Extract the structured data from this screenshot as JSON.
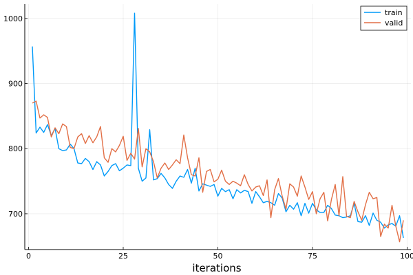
{
  "chart_data": {
    "type": "line",
    "title": "",
    "xlabel": "iterations",
    "ylabel": "",
    "xlim": [
      -1,
      101
    ],
    "ylim": [
      645,
      1022
    ],
    "xticks": [
      0,
      25,
      50,
      75,
      100
    ],
    "yticks": [
      700,
      800,
      900,
      1000
    ],
    "grid": true,
    "legend_position": "top-right",
    "series": [
      {
        "name": "train",
        "color": "#009af9",
        "x": [
          1,
          2,
          3,
          4,
          5,
          6,
          7,
          8,
          9,
          10,
          11,
          12,
          13,
          14,
          15,
          16,
          17,
          18,
          19,
          20,
          21,
          22,
          23,
          24,
          25,
          26,
          27,
          28,
          29,
          30,
          31,
          32,
          33,
          34,
          35,
          36,
          37,
          38,
          39,
          40,
          41,
          42,
          43,
          44,
          45,
          46,
          47,
          48,
          49,
          50,
          51,
          52,
          53,
          54,
          55,
          56,
          57,
          58,
          59,
          60,
          61,
          62,
          63,
          64,
          65,
          66,
          67,
          68,
          69,
          70,
          71,
          72,
          73,
          74,
          75,
          76,
          77,
          78,
          79,
          80,
          81,
          82,
          83,
          84,
          85,
          86,
          87,
          88,
          89,
          90,
          91,
          92,
          93,
          94,
          95,
          96,
          97,
          98,
          99
        ],
        "y": [
          957,
          824,
          833,
          825,
          837,
          820,
          831,
          800,
          797,
          798,
          807,
          800,
          778,
          777,
          785,
          780,
          768,
          780,
          775,
          758,
          765,
          774,
          777,
          766,
          770,
          775,
          774,
          1008,
          770,
          750,
          755,
          829,
          752,
          754,
          762,
          755,
          745,
          739,
          750,
          758,
          756,
          768,
          747,
          770,
          735,
          746,
          744,
          742,
          745,
          727,
          739,
          734,
          737,
          723,
          737,
          732,
          736,
          734,
          716,
          734,
          726,
          717,
          719,
          717,
          713,
          731,
          724,
          703,
          713,
          707,
          717,
          697,
          716,
          701,
          716,
          706,
          702,
          702,
          713,
          708,
          698,
          697,
          694,
          695,
          697,
          716,
          688,
          687,
          697,
          682,
          701,
          690,
          687,
          678,
          683,
          685,
          681,
          697,
          663
        ]
      },
      {
        "name": "valid",
        "color": "#e26f46",
        "x": [
          1,
          2,
          3,
          4,
          5,
          6,
          7,
          8,
          9,
          10,
          11,
          12,
          13,
          14,
          15,
          16,
          17,
          18,
          19,
          20,
          21,
          22,
          23,
          24,
          25,
          26,
          27,
          28,
          29,
          30,
          31,
          32,
          33,
          34,
          35,
          36,
          37,
          38,
          39,
          40,
          41,
          42,
          43,
          44,
          45,
          46,
          47,
          48,
          49,
          50,
          51,
          52,
          53,
          54,
          55,
          56,
          57,
          58,
          59,
          60,
          61,
          62,
          63,
          64,
          65,
          66,
          67,
          68,
          69,
          70,
          71,
          72,
          73,
          74,
          75,
          76,
          77,
          78,
          79,
          80,
          81,
          82,
          83,
          84,
          85,
          86,
          87,
          88,
          89,
          90,
          91,
          92,
          93,
          94,
          95,
          96,
          97,
          98,
          99
        ],
        "y": [
          870,
          873,
          847,
          852,
          848,
          818,
          832,
          823,
          838,
          834,
          802,
          800,
          818,
          823,
          808,
          820,
          809,
          818,
          834,
          786,
          779,
          800,
          795,
          805,
          819,
          782,
          793,
          784,
          831,
          772,
          800,
          795,
          780,
          755,
          770,
          778,
          768,
          775,
          783,
          777,
          821,
          786,
          760,
          758,
          786,
          733,
          765,
          768,
          749,
          753,
          767,
          750,
          745,
          750,
          747,
          743,
          760,
          745,
          735,
          741,
          743,
          728,
          752,
          694,
          737,
          754,
          727,
          707,
          746,
          741,
          727,
          758,
          741,
          722,
          734,
          700,
          723,
          733,
          689,
          722,
          745,
          697,
          757,
          696,
          694,
          719,
          703,
          690,
          714,
          733,
          723,
          725,
          665,
          684,
          678,
          713,
          681,
          657,
          690
        ]
      }
    ]
  }
}
